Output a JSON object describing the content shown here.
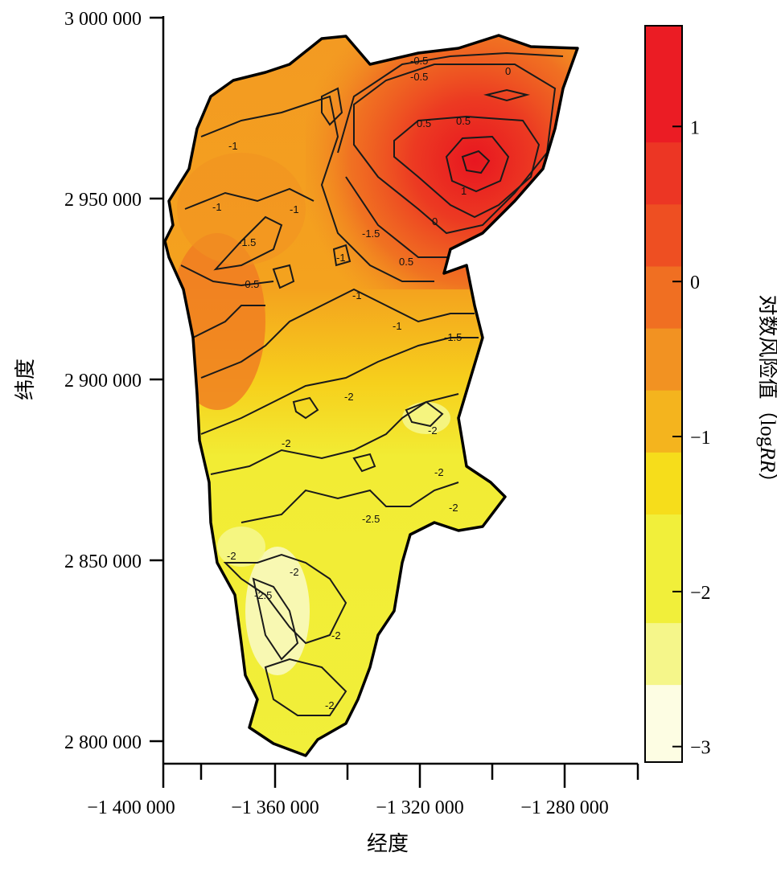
{
  "map": {
    "type": "choropleth-contour",
    "xlabel": "经度",
    "ylabel": "纬度",
    "x_ticks": [
      "−1 400 000",
      "−1 360 000",
      "−1 320 000",
      "−1 280 000"
    ],
    "x_tick_values": [
      -1400000,
      -1360000,
      -1320000,
      -1280000
    ],
    "y_ticks": [
      "3 000 000",
      "2 950 000",
      "2 900 000",
      "2 850 000",
      "2 800 000"
    ],
    "y_tick_values": [
      3000000,
      2950000,
      2900000,
      2850000,
      2800000
    ],
    "contour_labels": [
      "-0.5",
      "0",
      "0.5",
      "1",
      "-1",
      "-1.5",
      "-0.5",
      "0",
      "0.5",
      "-1",
      "-1",
      "-1.5",
      "-1",
      "-2",
      "-2",
      "-2",
      "-2",
      "-2.5",
      "-2",
      "-2.5",
      "-2",
      "-2",
      "-2",
      "-2",
      "-1.5",
      "-1",
      "-0.5",
      "0.5",
      "-1"
    ]
  },
  "colorbar": {
    "title_prefix": "对数风险值（log",
    "title_italic": "RR",
    "title_suffix": "）",
    "tick_labels": [
      "1",
      "0",
      "−1",
      "−2",
      "−3"
    ],
    "tick_values": [
      1,
      0,
      -1,
      -2,
      -3
    ],
    "range": [
      -3.1,
      1.65
    ],
    "bands": [
      {
        "from": -3.1,
        "to": -2.6,
        "color": "#FDFDE3"
      },
      {
        "from": -2.6,
        "to": -2.2,
        "color": "#F5F68A"
      },
      {
        "from": -2.2,
        "to": -1.5,
        "color": "#F1EF3A"
      },
      {
        "from": -1.5,
        "to": -1.1,
        "color": "#F6DD1B"
      },
      {
        "from": -1.1,
        "to": -0.7,
        "color": "#F4B41E"
      },
      {
        "from": -0.7,
        "to": -0.3,
        "color": "#F29222"
      },
      {
        "from": -0.3,
        "to": 0.1,
        "color": "#F06F22"
      },
      {
        "from": 0.1,
        "to": 0.5,
        "color": "#EE4F22"
      },
      {
        "from": 0.5,
        "to": 0.9,
        "color": "#EC3624"
      },
      {
        "from": 0.9,
        "to": 1.65,
        "color": "#EB1C24"
      }
    ]
  }
}
